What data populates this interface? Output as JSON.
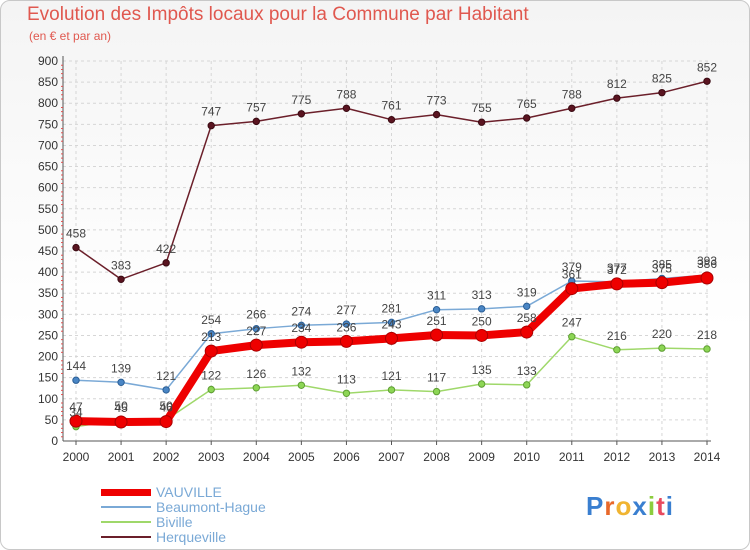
{
  "chart_data": {
    "type": "line",
    "title": "Evolution des Impôts locaux pour la Commune par Habitant",
    "subtitle": "(en € et par an)",
    "xlabel": "",
    "ylabel": "",
    "ylim": [
      0,
      900
    ],
    "yticks": [
      0,
      50,
      100,
      150,
      200,
      250,
      300,
      350,
      400,
      450,
      500,
      550,
      600,
      650,
      700,
      750,
      800,
      850,
      900
    ],
    "categories": [
      "2000",
      "2001",
      "2002",
      "2003",
      "2004",
      "2005",
      "2006",
      "2007",
      "2008",
      "2009",
      "2010",
      "2011",
      "2012",
      "2013",
      "2014"
    ],
    "grid": true,
    "legend_position": "bottom-left",
    "series": [
      {
        "name": "Herqueville",
        "color": "#6b1f2a",
        "values": [
          458,
          383,
          422,
          747,
          757,
          775,
          788,
          761,
          773,
          755,
          765,
          788,
          812,
          825,
          852
        ],
        "labels": [
          "458",
          "383",
          "422",
          "747",
          "757",
          "775",
          "788",
          "761",
          "773",
          "755",
          "765",
          "788",
          "812",
          "825",
          "852"
        ]
      },
      {
        "name": "Biville",
        "color": "#9fd86a",
        "values": [
          34,
          50,
          50,
          122,
          126,
          132,
          113,
          121,
          117,
          135,
          133,
          247,
          216,
          220,
          218
        ],
        "labels": [
          "34",
          "50",
          "50",
          "122",
          "126",
          "132",
          "113",
          "121",
          "117",
          "135",
          "133",
          "247",
          "216",
          "220",
          "218"
        ]
      },
      {
        "name": "Beaumont-Hague",
        "color": "#7aa9d6",
        "values": [
          144,
          139,
          121,
          254,
          266,
          274,
          277,
          281,
          311,
          313,
          319,
          379,
          377,
          385,
          393
        ],
        "labels": [
          "144",
          "139",
          "121",
          "254",
          "266",
          "274",
          "277",
          "281",
          "311",
          "313",
          "319",
          "379",
          "377",
          "385",
          "393"
        ]
      },
      {
        "name": "VAUVILLE",
        "color": "#ee0000",
        "values": [
          47,
          45,
          46,
          213,
          227,
          234,
          236,
          243,
          251,
          250,
          258,
          361,
          372,
          375,
          386
        ],
        "labels": [
          "47",
          "45",
          "46",
          "213",
          "227",
          "234",
          "236",
          "243",
          "251",
          "250",
          "258",
          "361",
          "372",
          "375",
          "386"
        ]
      }
    ]
  },
  "legend": {
    "vauville": "VAUVILLE",
    "beaumont": "Beaumont-Hague",
    "biville": "Biville",
    "herqueville": "Herqueville"
  },
  "logo": {
    "text": "Proxiti"
  }
}
